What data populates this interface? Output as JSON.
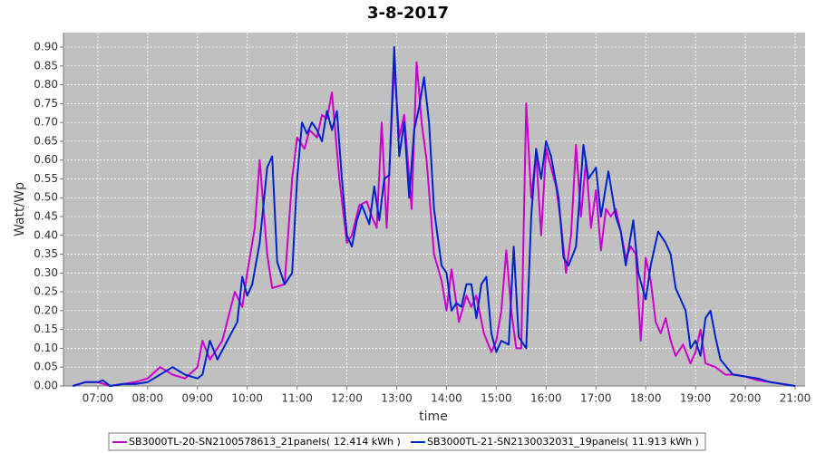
{
  "chart_data": {
    "type": "line",
    "title": "3-8-2017",
    "x_label": "time",
    "y_label": "Watt/Wp",
    "xlim": [
      6.31,
      21.2
    ],
    "ylim": [
      0,
      0.9385
    ],
    "grid": true,
    "legend": "bottom",
    "xticks": [
      {
        "value": 7,
        "label": "07:00"
      },
      {
        "value": 8,
        "label": "08:00"
      },
      {
        "value": 9,
        "label": "09:00"
      },
      {
        "value": 10,
        "label": "10:00"
      },
      {
        "value": 11,
        "label": "11:00"
      },
      {
        "value": 12,
        "label": "12:00"
      },
      {
        "value": 13,
        "label": "13:00"
      },
      {
        "value": 14,
        "label": "14:00"
      },
      {
        "value": 15,
        "label": "15:00"
      },
      {
        "value": 16,
        "label": "16:00"
      },
      {
        "value": 17,
        "label": "17:00"
      },
      {
        "value": 18,
        "label": "18:00"
      },
      {
        "value": 19,
        "label": "19:00"
      },
      {
        "value": 20,
        "label": "20:00"
      },
      {
        "value": 21,
        "label": "21:00"
      }
    ],
    "yticks": [
      {
        "value": 0,
        "label": "0.00"
      },
      {
        "value": 0.05,
        "label": "0.05"
      },
      {
        "value": 0.1,
        "label": "0.10"
      },
      {
        "value": 0.15,
        "label": "0.15"
      },
      {
        "value": 0.2,
        "label": "0.20"
      },
      {
        "value": 0.25,
        "label": "0.25"
      },
      {
        "value": 0.3,
        "label": "0.30"
      },
      {
        "value": 0.35,
        "label": "0.35"
      },
      {
        "value": 0.4,
        "label": "0.40"
      },
      {
        "value": 0.45,
        "label": "0.45"
      },
      {
        "value": 0.5,
        "label": "0.50"
      },
      {
        "value": 0.55,
        "label": "0.55"
      },
      {
        "value": 0.6,
        "label": "0.60"
      },
      {
        "value": 0.65,
        "label": "0.65"
      },
      {
        "value": 0.7,
        "label": "0.70"
      },
      {
        "value": 0.75,
        "label": "0.75"
      },
      {
        "value": 0.8,
        "label": "0.80"
      },
      {
        "value": 0.85,
        "label": "0.85"
      },
      {
        "value": 0.9,
        "label": "0.90"
      }
    ],
    "series": [
      {
        "name": "SB3000TL-20-SN2100578613_21panels( 12.414 kWh )",
        "color": "#cc00cc",
        "x": [
          6.5,
          6.75,
          7.0,
          7.25,
          7.5,
          7.75,
          8.0,
          8.25,
          8.5,
          8.75,
          9.0,
          9.1,
          9.25,
          9.5,
          9.75,
          9.9,
          10.0,
          10.15,
          10.25,
          10.4,
          10.5,
          10.75,
          10.9,
          11.0,
          11.15,
          11.25,
          11.4,
          11.5,
          11.6,
          11.7,
          11.85,
          12.0,
          12.1,
          12.25,
          12.4,
          12.5,
          12.6,
          12.7,
          12.8,
          12.95,
          13.05,
          13.15,
          13.3,
          13.4,
          13.5,
          13.6,
          13.75,
          13.9,
          14.0,
          14.1,
          14.25,
          14.4,
          14.5,
          14.6,
          14.75,
          14.9,
          15.0,
          15.1,
          15.2,
          15.3,
          15.4,
          15.5,
          15.6,
          15.7,
          15.8,
          15.9,
          16.0,
          16.1,
          16.2,
          16.3,
          16.4,
          16.5,
          16.6,
          16.7,
          16.8,
          16.9,
          17.0,
          17.1,
          17.2,
          17.3,
          17.4,
          17.5,
          17.6,
          17.7,
          17.8,
          17.9,
          18.0,
          18.1,
          18.2,
          18.3,
          18.4,
          18.5,
          18.6,
          18.75,
          18.9,
          19.0,
          19.1,
          19.2,
          19.4,
          19.6,
          19.8,
          20.0,
          20.25,
          20.5,
          20.75,
          21.0
        ],
        "values": [
          0.0,
          0.01,
          0.01,
          0.0,
          0.005,
          0.01,
          0.02,
          0.05,
          0.03,
          0.02,
          0.05,
          0.12,
          0.07,
          0.12,
          0.25,
          0.21,
          0.3,
          0.42,
          0.6,
          0.35,
          0.26,
          0.27,
          0.55,
          0.66,
          0.63,
          0.68,
          0.66,
          0.72,
          0.71,
          0.78,
          0.55,
          0.38,
          0.4,
          0.48,
          0.49,
          0.45,
          0.42,
          0.7,
          0.42,
          0.85,
          0.66,
          0.72,
          0.47,
          0.86,
          0.7,
          0.6,
          0.35,
          0.28,
          0.2,
          0.31,
          0.17,
          0.24,
          0.21,
          0.24,
          0.14,
          0.09,
          0.12,
          0.2,
          0.36,
          0.2,
          0.1,
          0.1,
          0.75,
          0.5,
          0.62,
          0.4,
          0.63,
          0.58,
          0.53,
          0.43,
          0.3,
          0.4,
          0.64,
          0.45,
          0.6,
          0.42,
          0.52,
          0.36,
          0.47,
          0.45,
          0.47,
          0.41,
          0.34,
          0.37,
          0.35,
          0.12,
          0.34,
          0.28,
          0.17,
          0.14,
          0.18,
          0.12,
          0.08,
          0.11,
          0.06,
          0.09,
          0.15,
          0.06,
          0.05,
          0.03,
          0.03,
          0.025,
          0.015,
          0.01,
          0.005,
          0.0
        ]
      },
      {
        "name": "SB3000TL-21-SN2130032031_19panels( 11.913 kWh )",
        "color": "#0022cc",
        "x": [
          6.5,
          6.75,
          7.0,
          7.1,
          7.25,
          7.5,
          7.75,
          8.0,
          8.25,
          8.5,
          8.75,
          9.0,
          9.1,
          9.25,
          9.4,
          9.6,
          9.8,
          9.9,
          10.0,
          10.1,
          10.25,
          10.4,
          10.5,
          10.6,
          10.75,
          10.9,
          11.0,
          11.1,
          11.2,
          11.3,
          11.4,
          11.5,
          11.6,
          11.7,
          11.8,
          11.9,
          12.0,
          12.1,
          12.2,
          12.3,
          12.45,
          12.55,
          12.65,
          12.75,
          12.85,
          12.95,
          13.05,
          13.15,
          13.25,
          13.35,
          13.45,
          13.55,
          13.65,
          13.75,
          13.9,
          14.0,
          14.1,
          14.2,
          14.3,
          14.4,
          14.5,
          14.6,
          14.7,
          14.8,
          14.9,
          15.0,
          15.1,
          15.25,
          15.35,
          15.45,
          15.6,
          15.7,
          15.8,
          15.9,
          16.0,
          16.1,
          16.25,
          16.35,
          16.45,
          16.6,
          16.75,
          16.85,
          17.0,
          17.1,
          17.25,
          17.4,
          17.5,
          17.6,
          17.75,
          17.85,
          18.0,
          18.1,
          18.25,
          18.4,
          18.5,
          18.6,
          18.7,
          18.8,
          18.9,
          19.0,
          19.1,
          19.2,
          19.3,
          19.4,
          19.5,
          19.75,
          20.0,
          20.25,
          20.5,
          20.75,
          21.0
        ],
        "values": [
          0.0,
          0.01,
          0.01,
          0.015,
          0.0,
          0.005,
          0.005,
          0.01,
          0.03,
          0.05,
          0.03,
          0.02,
          0.03,
          0.12,
          0.07,
          0.12,
          0.17,
          0.29,
          0.24,
          0.27,
          0.38,
          0.58,
          0.61,
          0.33,
          0.27,
          0.3,
          0.55,
          0.7,
          0.67,
          0.7,
          0.68,
          0.65,
          0.73,
          0.68,
          0.73,
          0.55,
          0.4,
          0.37,
          0.44,
          0.48,
          0.43,
          0.53,
          0.44,
          0.55,
          0.56,
          0.9,
          0.61,
          0.7,
          0.5,
          0.68,
          0.74,
          0.82,
          0.7,
          0.47,
          0.32,
          0.3,
          0.2,
          0.22,
          0.21,
          0.27,
          0.27,
          0.18,
          0.27,
          0.29,
          0.14,
          0.09,
          0.12,
          0.11,
          0.37,
          0.13,
          0.1,
          0.45,
          0.63,
          0.55,
          0.65,
          0.61,
          0.5,
          0.34,
          0.32,
          0.37,
          0.64,
          0.55,
          0.58,
          0.45,
          0.57,
          0.45,
          0.41,
          0.32,
          0.44,
          0.3,
          0.23,
          0.32,
          0.41,
          0.38,
          0.35,
          0.26,
          0.23,
          0.2,
          0.1,
          0.12,
          0.08,
          0.18,
          0.2,
          0.13,
          0.07,
          0.03,
          0.025,
          0.02,
          0.01,
          0.005,
          0.0
        ]
      }
    ]
  }
}
